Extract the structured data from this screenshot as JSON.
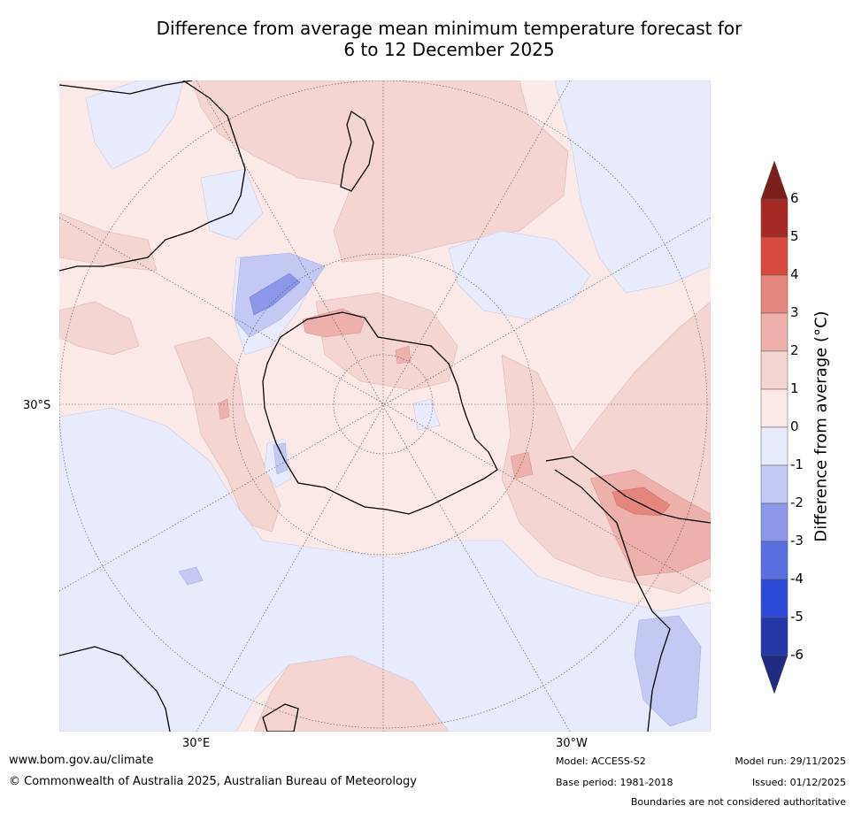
{
  "title": {
    "line1": "Difference from average mean minimum temperature forecast for",
    "line2": "6 to 12 December 2025"
  },
  "map": {
    "projection": "south polar stereographic",
    "tick_labels": {
      "left": "30°S",
      "bottom_left": "30°E",
      "bottom_right": "30°W"
    },
    "features": [
      "Australia",
      "New Zealand",
      "Antarctica",
      "South America",
      "Africa"
    ]
  },
  "legend": {
    "title": "Difference from average (°C)",
    "levels": [
      "6",
      "5",
      "4",
      "3",
      "2",
      "1",
      "0",
      "-1",
      "-2",
      "-3",
      "-4",
      "-5",
      "-6"
    ],
    "colors": {
      "over": "#7a1f1a",
      "c5_6": "#a52a25",
      "c4_5": "#d94a3e",
      "c3_4": "#e5867d",
      "c2_3": "#edb0aa",
      "c1_2": "#f5d5d2",
      "c0_1": "#fbe9e7",
      "cm1_0": "#e8ebfb",
      "cm2_m1": "#c3c9f2",
      "cm3_m2": "#8b98e9",
      "cm4_m3": "#5a6fdf",
      "cm5_m4": "#2e4ad8",
      "cm6_m5": "#2438a8",
      "under": "#1f2a80"
    }
  },
  "footer": {
    "url": "www.bom.gov.au/climate",
    "copyright": "© Commonwealth of Australia 2025, Australian Bureau of Meteorology",
    "model": "Model: ACCESS-S2",
    "base_period": "Base period: 1981-2018",
    "model_run": "Model run: 29/11/2025",
    "issued": "Issued: 01/12/2025",
    "disclaimer": "Boundaries are not considered authoritative"
  }
}
